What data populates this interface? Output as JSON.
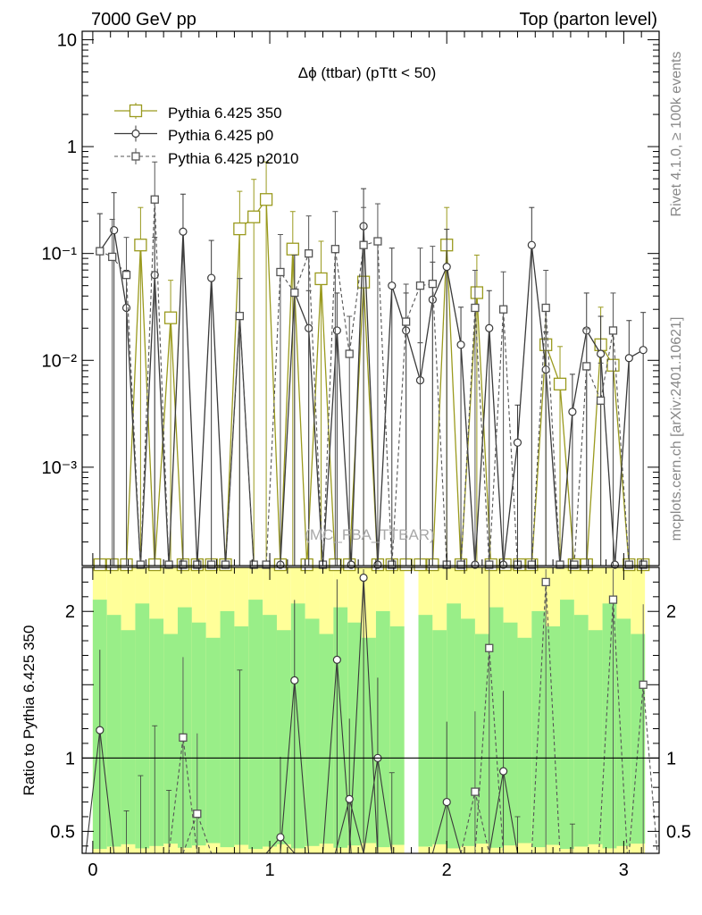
{
  "header": {
    "left": "7000 GeV pp",
    "right": "Top (parton level)"
  },
  "side_text": {
    "rivet": "Rivet 4.1.0, ≥ 100k events",
    "mcplots": "mcplots.cern.ch [arXiv:2401.10621]"
  },
  "colors": {
    "olive": "#9a9a1e",
    "dark": "#3a3a3a",
    "grey": "#555555",
    "band_green": "#99ee88",
    "band_yellow": "#ffff99"
  },
  "chart_data": [
    {
      "type": "line",
      "title": "Δϕ (ttbar) (pTtt < 50)",
      "watermark": "(MC_FBA_TTBAR)",
      "xlabel": "",
      "ylabel": "",
      "xlim": [
        -0.06,
        3.2
      ],
      "ylim": [
        0.00012,
        12
      ],
      "yscale": "log",
      "y_ticks": [
        {
          "value": 10,
          "label": "10"
        },
        {
          "value": 1,
          "label": "1"
        },
        {
          "value": 0.1,
          "label": "10⁻¹"
        },
        {
          "value": 0.01,
          "label": "10⁻²"
        },
        {
          "value": 0.001,
          "label": "10⁻³"
        }
      ],
      "series": [
        {
          "name": "Pythia 6.425 350",
          "style": "olive-solid-bigsquare",
          "points": [
            [
              0.27,
              0.12
            ],
            [
              0.44,
              0.025
            ],
            [
              0.83,
              0.17
            ],
            [
              0.91,
              0.22
            ],
            [
              0.98,
              0.32
            ],
            [
              1.13,
              0.11
            ],
            [
              1.29,
              0.058
            ],
            [
              1.53,
              0.054
            ],
            [
              2.0,
              0.12
            ],
            [
              2.17,
              0.043
            ],
            [
              2.56,
              0.014
            ],
            [
              2.64,
              0.006
            ],
            [
              2.87,
              0.014
            ],
            [
              2.94,
              0.009
            ]
          ],
          "zero_x": [
            0.04,
            0.11,
            0.19,
            0.35,
            0.51,
            0.59,
            0.67,
            0.75,
            1.06,
            1.21,
            1.37,
            1.45,
            1.61,
            1.69,
            1.77,
            1.85,
            1.92,
            2.08,
            2.25,
            2.33,
            2.41,
            2.48,
            2.72,
            2.79,
            3.03,
            3.11
          ]
        },
        {
          "name": "Pythia 6.425 p0",
          "style": "dark-solid-circle",
          "points": [
            [
              0.04,
              0.105
            ],
            [
              0.12,
              0.165
            ],
            [
              0.19,
              0.031
            ],
            [
              0.35,
              0.063
            ],
            [
              0.51,
              0.16
            ],
            [
              0.67,
              0.059
            ],
            [
              0.83,
              0.026
            ],
            [
              1.14,
              0.043
            ],
            [
              1.22,
              0.02
            ],
            [
              1.38,
              0.019
            ],
            [
              1.53,
              0.18
            ],
            [
              1.69,
              0.05
            ],
            [
              1.77,
              0.019
            ],
            [
              1.85,
              0.0065
            ],
            [
              1.92,
              0.037
            ],
            [
              2.0,
              0.075
            ],
            [
              2.08,
              0.014
            ],
            [
              2.24,
              0.02
            ],
            [
              2.4,
              0.0017
            ],
            [
              2.48,
              0.12
            ],
            [
              2.56,
              0.0082
            ],
            [
              2.71,
              0.0033
            ],
            [
              2.79,
              0.019
            ],
            [
              2.87,
              0.0115
            ],
            [
              3.03,
              0.0105
            ],
            [
              3.11,
              0.0125
            ]
          ],
          "zero_x": [
            0.27,
            0.43,
            0.59,
            0.75,
            0.91,
            1.06,
            1.3,
            1.46,
            1.61,
            2.16,
            2.32,
            2.64,
            2.95
          ]
        },
        {
          "name": "Pythia 6.425 p2010",
          "style": "grey-dashed-square",
          "points": [
            [
              0.04,
              0.105
            ],
            [
              0.11,
              0.093
            ],
            [
              0.19,
              0.063
            ],
            [
              0.35,
              0.32
            ],
            [
              0.83,
              0.026
            ],
            [
              1.06,
              0.067
            ],
            [
              1.14,
              0.043
            ],
            [
              1.22,
              0.1
            ],
            [
              1.37,
              0.11
            ],
            [
              1.45,
              0.0115
            ],
            [
              1.53,
              0.12
            ],
            [
              1.61,
              0.13
            ],
            [
              1.77,
              0.023
            ],
            [
              1.85,
              0.05
            ],
            [
              1.92,
              0.052
            ],
            [
              2.16,
              0.031
            ],
            [
              2.32,
              0.03
            ],
            [
              2.56,
              0.031
            ],
            [
              2.79,
              0.0088
            ],
            [
              2.87,
              0.0042
            ],
            [
              2.94,
              0.019
            ]
          ],
          "zero_x": [
            0.27,
            0.43,
            0.51,
            0.59,
            0.67,
            0.75,
            0.91,
            0.98,
            1.3,
            1.69,
            2.0,
            2.08,
            2.24,
            2.4,
            2.48,
            2.64,
            2.72,
            3.03,
            3.11
          ]
        }
      ],
      "legend": [
        "Pythia 6.425 350",
        "Pythia 6.425 p0",
        "Pythia 6.425 p2010"
      ],
      "legend_position": "top-left"
    },
    {
      "type": "line",
      "title": "",
      "ylabel": "Ratio to Pythia 6.425 350",
      "xlim": [
        -0.06,
        3.2
      ],
      "ylim": [
        0.35,
        2.3
      ],
      "x_ticks": [
        {
          "value": 0,
          "label": "0"
        },
        {
          "value": 1,
          "label": "1"
        },
        {
          "value": 2,
          "label": "2"
        },
        {
          "value": 3,
          "label": "3"
        }
      ],
      "y_ticks": [
        {
          "value": 0.5,
          "label": "0.5"
        },
        {
          "value": 1,
          "label": "1"
        },
        {
          "value": 2,
          "label": "2"
        }
      ],
      "reference_line": 1.0,
      "series": [
        {
          "name": "Pythia 6.425 p0",
          "points": [
            [
              0.04,
              1.19
            ],
            [
              1.06,
              0.46
            ],
            [
              1.14,
              1.53
            ],
            [
              1.38,
              1.67
            ],
            [
              1.45,
              0.72
            ],
            [
              1.53,
              2.23
            ],
            [
              1.61,
              1.0
            ],
            [
              2.0,
              0.7
            ],
            [
              2.32,
              0.91
            ]
          ]
        },
        {
          "name": "Pythia 6.425 p2010",
          "points": [
            [
              0.51,
              1.14
            ],
            [
              0.59,
              0.62
            ],
            [
              2.16,
              0.77
            ],
            [
              2.24,
              1.75
            ],
            [
              2.56,
              2.2
            ],
            [
              2.94,
              2.08
            ],
            [
              3.11,
              1.5
            ]
          ]
        }
      ]
    }
  ]
}
